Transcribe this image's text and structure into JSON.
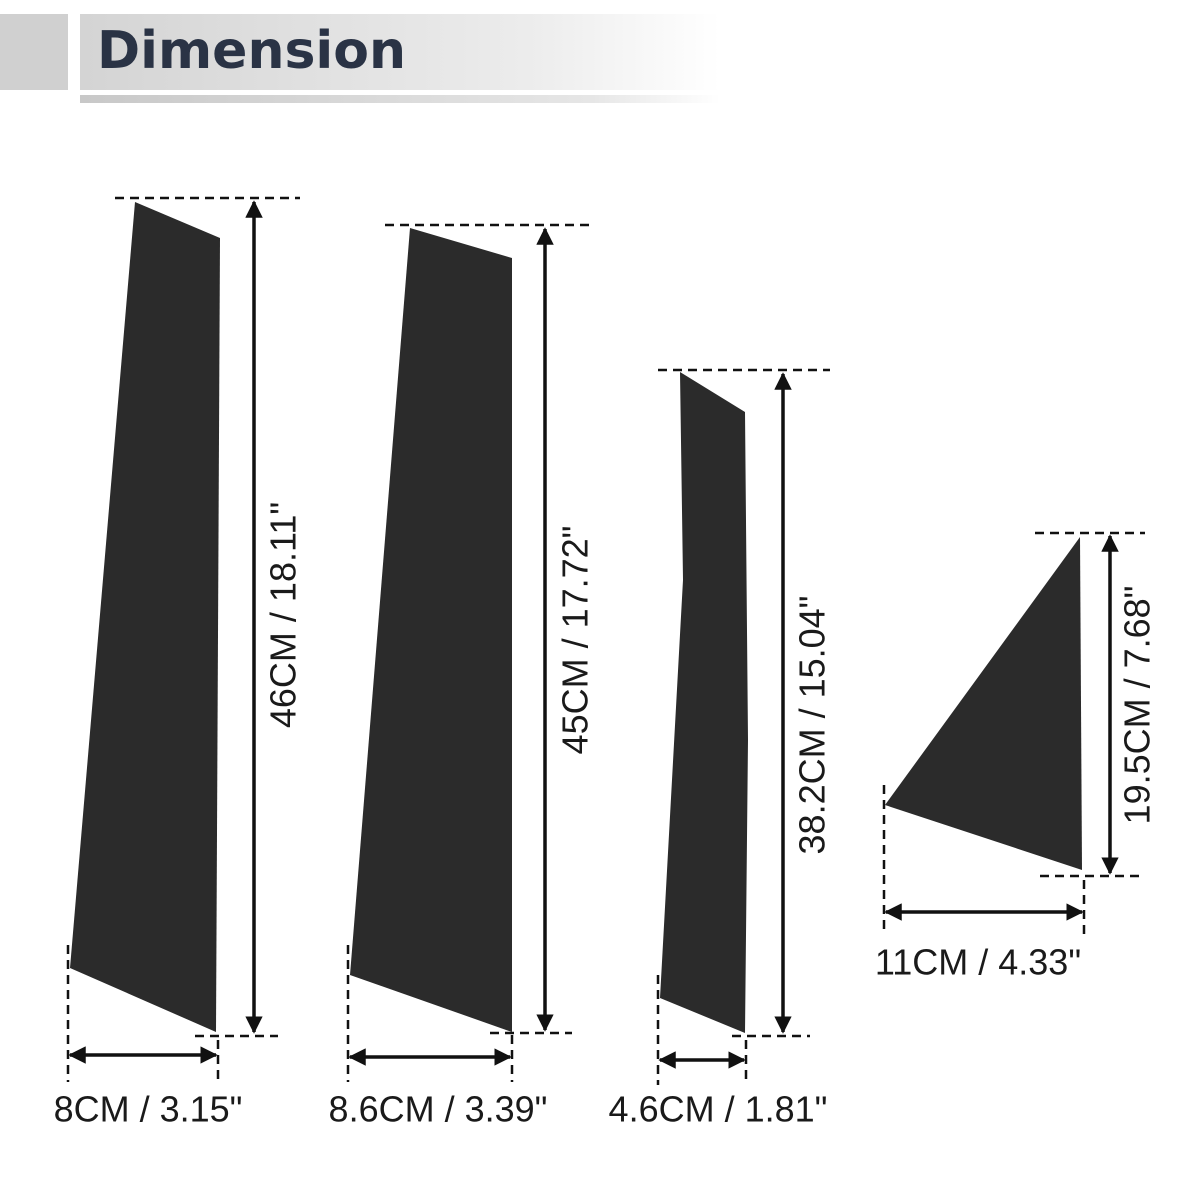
{
  "header": {
    "title": "Dimension"
  },
  "pieces": [
    {
      "height": "46CM / 18.11\"",
      "width": "8CM / 3.15\""
    },
    {
      "height": "45CM / 17.72\"",
      "width": "8.6CM / 3.39\""
    },
    {
      "height": "38.2CM / 15.04\"",
      "width": "4.6CM / 1.81\""
    },
    {
      "height": "19.5CM / 7.68\"",
      "width": "11CM / 4.33\""
    }
  ]
}
